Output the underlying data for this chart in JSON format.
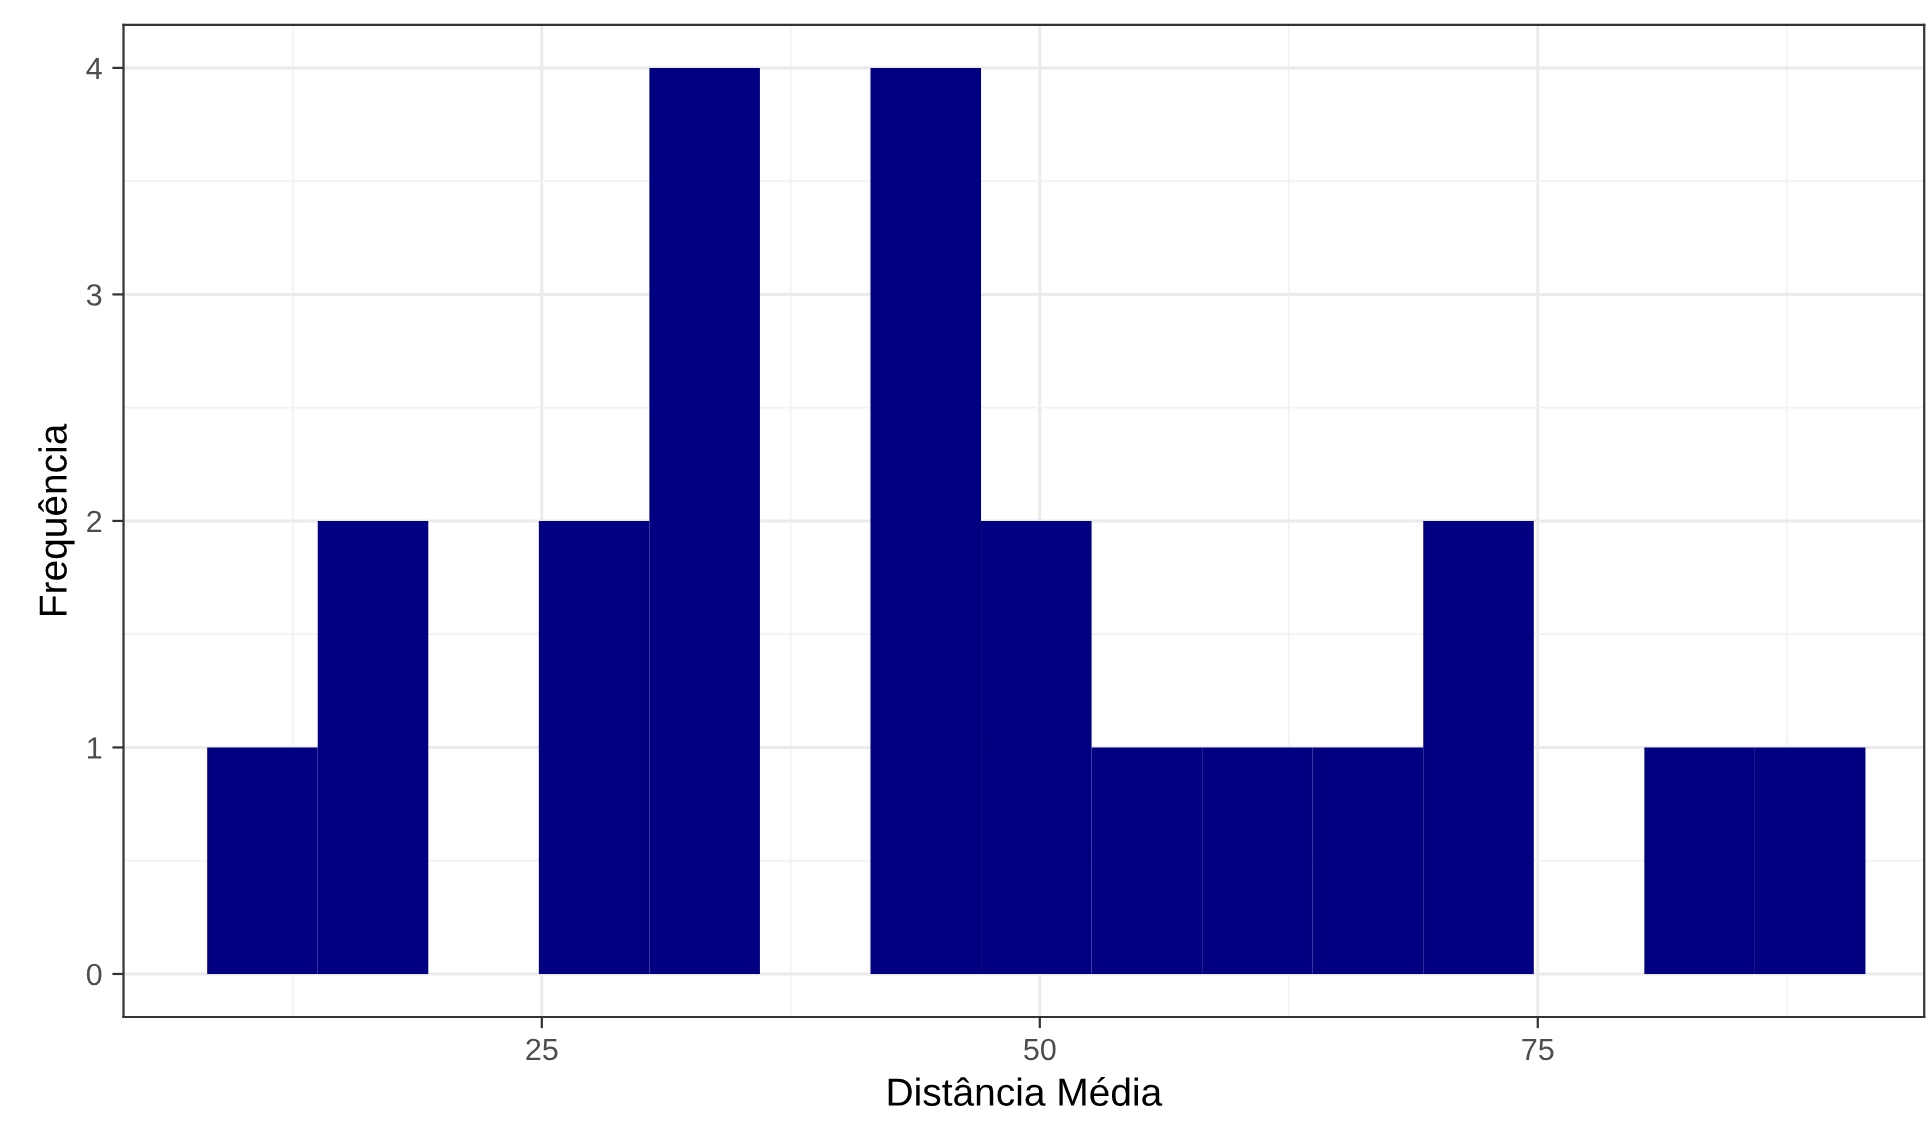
{
  "chart_data": {
    "type": "histogram",
    "xlabel": "Distância Média",
    "ylabel": "Frequência",
    "bins": [
      8.2,
      13.75,
      19.3,
      24.85,
      30.4,
      35.95,
      41.5,
      47.05,
      52.6,
      58.15,
      63.7,
      69.25,
      74.8,
      80.35,
      85.9,
      91.45
    ],
    "values": [
      1,
      2,
      0,
      2,
      4,
      0,
      4,
      2,
      1,
      1,
      1,
      2,
      0,
      1,
      1
    ],
    "color": "#000080",
    "xlim": [
      4.0,
      94.4
    ],
    "xticks": [
      25,
      50,
      75
    ],
    "ylim": [
      -0.19,
      4.19
    ],
    "yticks": [
      0,
      1,
      2,
      3,
      4
    ],
    "grid": true
  }
}
